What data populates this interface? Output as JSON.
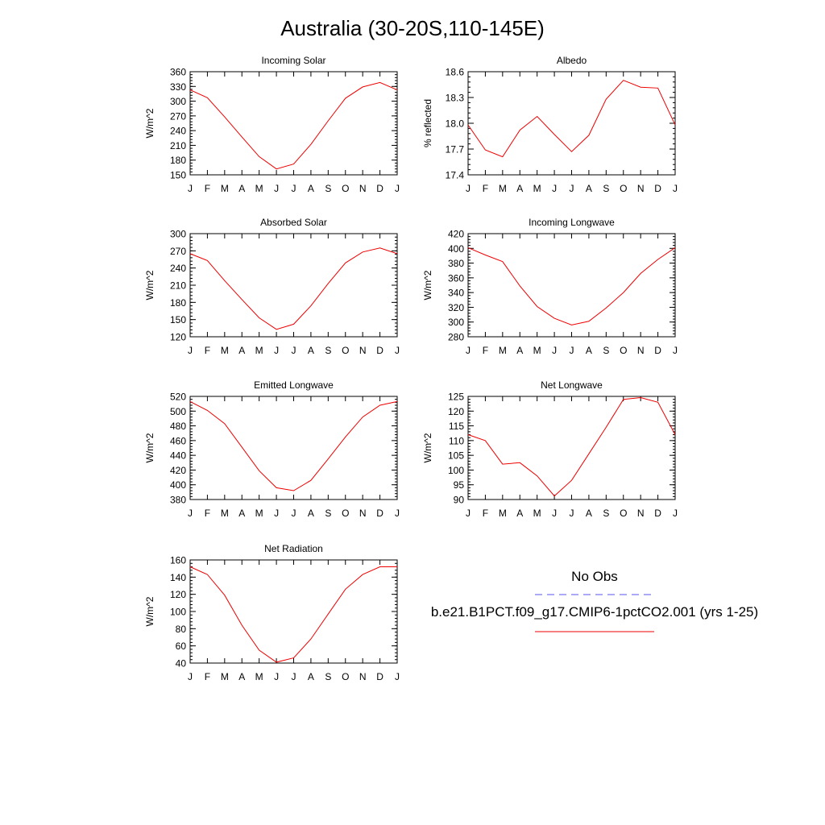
{
  "title": "Australia (30-20S,110-145E)",
  "legend": {
    "obs_label": "No Obs",
    "obs_color": "#5555ee",
    "case_label": "b.e21.B1PCT.f09_g17.CMIP6-1pctCO2.001 (yrs 1-25)",
    "case_color": "#ee0000"
  },
  "chart_data": [
    {
      "type": "line",
      "title": "Incoming Solar",
      "ylabel": "W/m^2",
      "categories": [
        "J",
        "F",
        "M",
        "A",
        "M",
        "J",
        "J",
        "A",
        "S",
        "O",
        "N",
        "D",
        "J"
      ],
      "yticks": [
        150,
        180,
        210,
        240,
        270,
        300,
        330,
        360
      ],
      "ylim": [
        150,
        360
      ],
      "series": [
        {
          "values": [
            323,
            307,
            268,
            227,
            187,
            162,
            172,
            212,
            260,
            306,
            329,
            338,
            323
          ],
          "color": "#ee0000"
        }
      ]
    },
    {
      "type": "line",
      "title": "Albedo",
      "ylabel": "% reflected",
      "categories": [
        "J",
        "F",
        "M",
        "A",
        "M",
        "J",
        "J",
        "A",
        "S",
        "O",
        "N",
        "D",
        "J"
      ],
      "yticks": [
        "17.4",
        "17.7",
        "18.0",
        "18.3",
        "18.6"
      ],
      "ylim": [
        17.4,
        18.6
      ],
      "series": [
        {
          "values": [
            17.98,
            17.69,
            17.61,
            17.92,
            18.08,
            17.87,
            17.67,
            17.86,
            18.28,
            18.5,
            18.42,
            18.41,
            17.98
          ],
          "color": "#ee0000"
        }
      ]
    },
    {
      "type": "line",
      "title": "Absorbed Solar",
      "ylabel": "W/m^2",
      "categories": [
        "J",
        "F",
        "M",
        "A",
        "M",
        "J",
        "J",
        "A",
        "S",
        "O",
        "N",
        "D",
        "J"
      ],
      "yticks": [
        120,
        150,
        180,
        210,
        240,
        270,
        300
      ],
      "ylim": [
        120,
        300
      ],
      "series": [
        {
          "values": [
            265,
            253,
            218,
            185,
            153,
            133,
            142,
            174,
            213,
            249,
            268,
            275,
            265
          ],
          "color": "#ee0000"
        }
      ]
    },
    {
      "type": "line",
      "title": "Incoming Longwave",
      "ylabel": "W/m^2",
      "categories": [
        "J",
        "F",
        "M",
        "A",
        "M",
        "J",
        "J",
        "A",
        "S",
        "O",
        "N",
        "D",
        "J"
      ],
      "yticks": [
        280,
        300,
        320,
        340,
        360,
        380,
        400,
        420
      ],
      "ylim": [
        280,
        420
      ],
      "series": [
        {
          "values": [
            401,
            391,
            382,
            349,
            321,
            305,
            296,
            301,
            319,
            340,
            366,
            385,
            401
          ],
          "color": "#ee0000"
        }
      ]
    },
    {
      "type": "line",
      "title": "Emitted Longwave",
      "ylabel": "W/m^2",
      "categories": [
        "J",
        "F",
        "M",
        "A",
        "M",
        "J",
        "J",
        "A",
        "S",
        "O",
        "N",
        "D",
        "J"
      ],
      "yticks": [
        380,
        400,
        420,
        440,
        460,
        480,
        500,
        520
      ],
      "ylim": [
        380,
        520
      ],
      "series": [
        {
          "values": [
            513,
            501,
            483,
            451,
            419,
            396,
            392,
            406,
            435,
            465,
            492,
            508,
            513
          ],
          "color": "#ee0000"
        }
      ]
    },
    {
      "type": "line",
      "title": "Net Longwave",
      "ylabel": "W/m^2",
      "categories": [
        "J",
        "F",
        "M",
        "A",
        "M",
        "J",
        "J",
        "A",
        "S",
        "O",
        "N",
        "D",
        "J"
      ],
      "yticks": [
        90,
        95,
        100,
        105,
        110,
        115,
        120,
        125
      ],
      "ylim": [
        90,
        125
      ],
      "series": [
        {
          "values": [
            112,
            110,
            102,
            102.5,
            98,
            91.2,
            96.5,
            105.5,
            114.5,
            124,
            124.6,
            123,
            112
          ],
          "color": "#ee0000"
        }
      ]
    },
    {
      "type": "line",
      "title": "Net Radiation",
      "ylabel": "W/m^2",
      "categories": [
        "J",
        "F",
        "M",
        "A",
        "M",
        "J",
        "J",
        "A",
        "S",
        "O",
        "N",
        "D",
        "J"
      ],
      "yticks": [
        40,
        60,
        80,
        100,
        120,
        140,
        160
      ],
      "ylim": [
        40,
        160
      ],
      "series": [
        {
          "values": [
            152,
            143,
            119,
            84,
            55,
            41,
            46,
            68,
            97,
            126,
            143,
            152,
            152
          ],
          "color": "#ee0000"
        }
      ]
    }
  ]
}
